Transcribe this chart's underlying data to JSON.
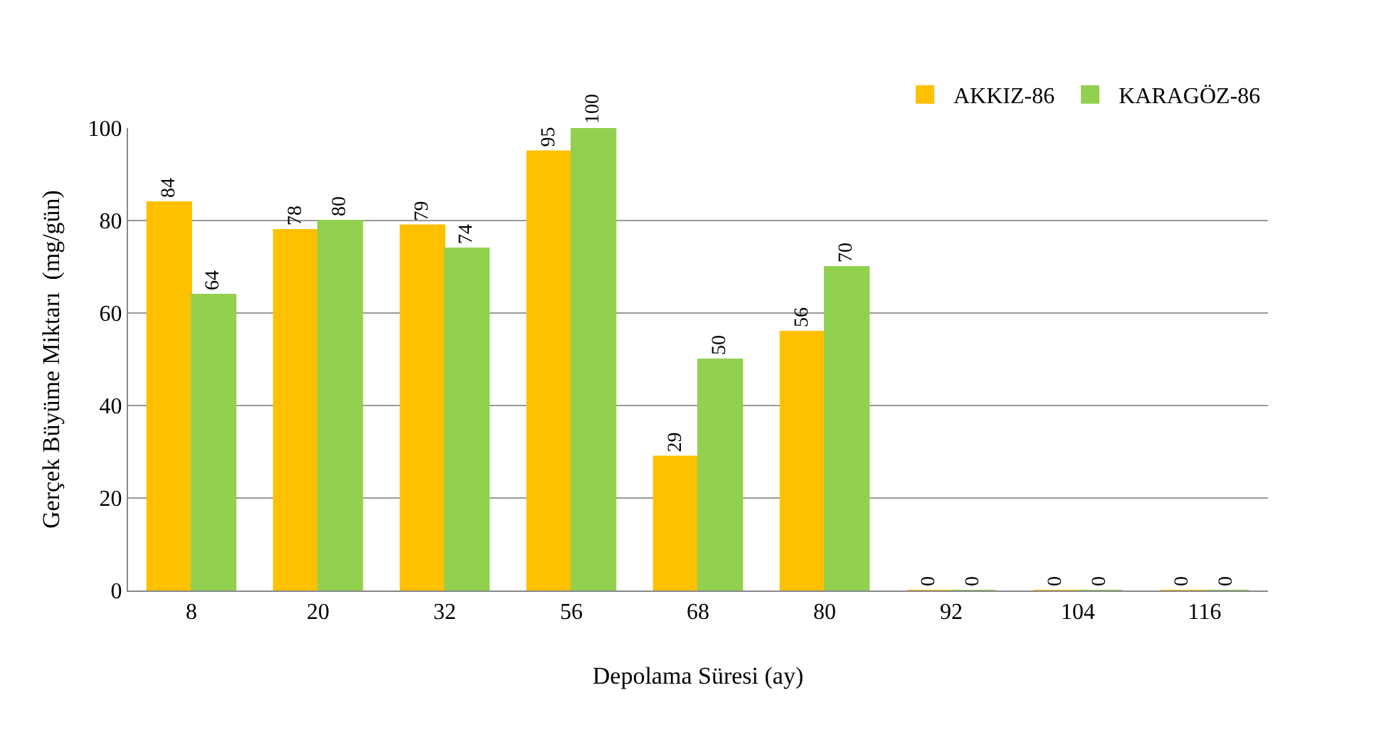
{
  "chart_data": {
    "type": "bar",
    "xlabel": "Depolama Süresi (ay)",
    "ylabel": "Gerçek Büyüme Miktarı  (mg/gün)",
    "categories": [
      "8",
      "20",
      "32",
      "56",
      "68",
      "80",
      "92",
      "104",
      "116"
    ],
    "series": [
      {
        "name": "AKKIZ-86",
        "color": "#ffc000",
        "values": [
          84,
          78,
          79,
          95,
          29,
          56,
          0,
          0,
          0
        ]
      },
      {
        "name": "KARAGÖZ-86",
        "color": "#92d050",
        "values": [
          64,
          80,
          74,
          100,
          50,
          70,
          0,
          0,
          0
        ]
      }
    ],
    "ylim": [
      0,
      100
    ],
    "yticks": [
      0,
      20,
      40,
      60,
      80,
      100
    ],
    "grid": "y",
    "legend": "top right",
    "data_labels": true
  }
}
